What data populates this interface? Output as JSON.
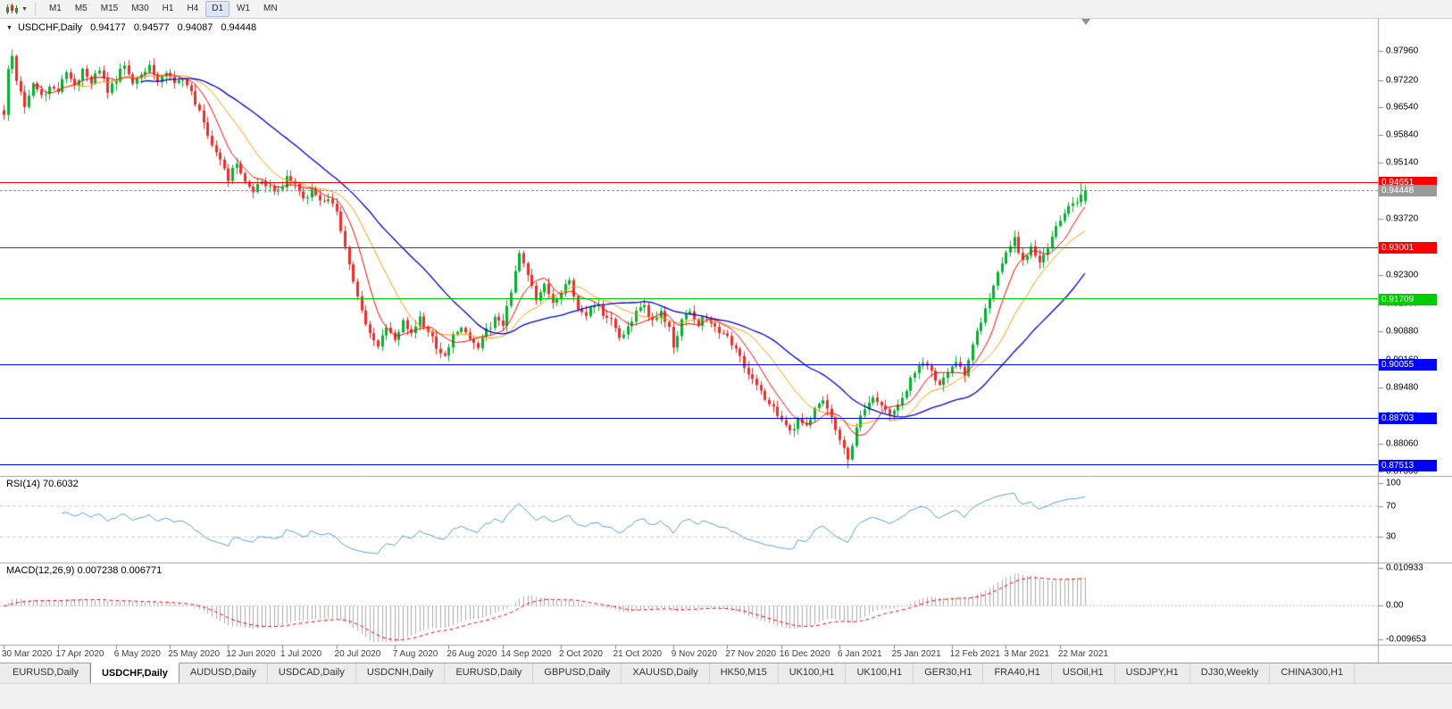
{
  "toolbar": {
    "timeframes": [
      "M1",
      "M5",
      "M15",
      "M30",
      "H1",
      "H4",
      "D1",
      "W1",
      "MN"
    ],
    "active_timeframe": "D1"
  },
  "main_chart": {
    "symbol_title": "USDCHF,Daily",
    "ohlc": {
      "open": "0.94177",
      "high": "0.94577",
      "low": "0.94087",
      "close": "0.94448"
    }
  },
  "indicator_panels": {
    "rsi": {
      "label": "RSI(14) 70.6032",
      "scale_labels": [
        "100",
        "70",
        "30"
      ]
    },
    "macd": {
      "label": "MACD(12,26,9) 0.007238 0.006771",
      "scale_labels": [
        "0.010933",
        "0.00",
        "-0.009653"
      ]
    }
  },
  "price_scale_labels": [
    "0.97960",
    "0.97220",
    "0.96540",
    "0.95840",
    "0.95140",
    "0.94440",
    "0.93720",
    "0.93020",
    "0.92300",
    "0.91600",
    "0.90880",
    "0.90160",
    "0.89480",
    "0.88760",
    "0.88060",
    "0.87360"
  ],
  "price_lines": [
    {
      "label": "0.94651",
      "price": 0.94651,
      "color": "#ff0000",
      "kind": "resistance",
      "dashed": false
    },
    {
      "label": "0.94448",
      "price": 0.94448,
      "color": "#9a9a9a",
      "kind": "current-price",
      "dashed": true
    },
    {
      "label": "0.93001",
      "price": 0.93001,
      "color": "#ff0000",
      "kind": "resistance",
      "dashed": false
    },
    {
      "label": "0.91709",
      "price": 0.91709,
      "color": "#00cc00",
      "kind": "support",
      "dashed": false
    },
    {
      "label": "0.90055",
      "price": 0.90055,
      "color": "#0000ff",
      "kind": "support",
      "dashed": false
    },
    {
      "label": "0.88703",
      "price": 0.88703,
      "color": "#0000ff",
      "kind": "support",
      "dashed": false
    },
    {
      "label": "0.87513",
      "price": 0.87513,
      "color": "#0000ff",
      "kind": "support",
      "dashed": false
    }
  ],
  "date_axis": [
    {
      "text": "30 Mar 2020",
      "bar": 0
    },
    {
      "text": "17 Apr 2020",
      "bar": 13
    },
    {
      "text": "6 May 2020",
      "bar": 27
    },
    {
      "text": "25 May 2020",
      "bar": 40
    },
    {
      "text": "12 Jun 2020",
      "bar": 54
    },
    {
      "text": "1 Jul 2020",
      "bar": 67
    },
    {
      "text": "20 Jul 2020",
      "bar": 80
    },
    {
      "text": "7 Aug 2020",
      "bar": 94
    },
    {
      "text": "26 Aug 2020",
      "bar": 107
    },
    {
      "text": "14 Sep 2020",
      "bar": 120
    },
    {
      "text": "2 Oct 2020",
      "bar": 134
    },
    {
      "text": "21 Oct 2020",
      "bar": 147
    },
    {
      "text": "9 Nov 2020",
      "bar": 161
    },
    {
      "text": "27 Nov 2020",
      "bar": 174
    },
    {
      "text": "16 Dec 2020",
      "bar": 187
    },
    {
      "text": "6 Jan 2021",
      "bar": 201
    },
    {
      "text": "25 Jan 2021",
      "bar": 214
    },
    {
      "text": "12 Feb 2021",
      "bar": 228
    },
    {
      "text": "3 Mar 2021",
      "bar": 241
    },
    {
      "text": "22 Mar 2021",
      "bar": 254
    }
  ],
  "chart_data": {
    "type": "candlestick",
    "symbol": "USDCHF",
    "timeframe": "Daily",
    "bars": 261,
    "price_range": [
      0.8724,
      0.988
    ],
    "colors": {
      "up": "#00b22d",
      "down": "#ee2b2b",
      "ma_fast": "#ff0000",
      "ma_medium": "#ff9900",
      "ma_slow": "#0000cd",
      "rsi": "#559fd6",
      "macd_histogram": "#ababab",
      "macd_signal": "#ff0000"
    },
    "moving_averages": [
      {
        "period": 8,
        "color_key": "ma_fast"
      },
      {
        "period": 17,
        "color_key": "ma_medium"
      },
      {
        "period": 34,
        "color_key": "ma_slow"
      }
    ],
    "rsi": {
      "period": 14,
      "current": 70.6032,
      "levels": [
        70,
        30
      ]
    },
    "macd": {
      "fast": 12,
      "slow": 26,
      "signal": 9,
      "current_main": 0.007238,
      "current_signal": 0.006771,
      "display_max": 0.010933,
      "display_min": -0.009653
    },
    "close_anchors": [
      [
        0,
        0.964
      ],
      [
        1,
        0.9755
      ],
      [
        2,
        0.9785
      ],
      [
        3,
        0.972
      ],
      [
        5,
        0.966
      ],
      [
        7,
        0.9715
      ],
      [
        9,
        0.9685
      ],
      [
        11,
        0.9705
      ],
      [
        13,
        0.9695
      ],
      [
        15,
        0.9745
      ],
      [
        17,
        0.9705
      ],
      [
        19,
        0.9755
      ],
      [
        21,
        0.972
      ],
      [
        23,
        0.9745
      ],
      [
        25,
        0.9695
      ],
      [
        27,
        0.9725
      ],
      [
        29,
        0.9765
      ],
      [
        31,
        0.9715
      ],
      [
        33,
        0.9735
      ],
      [
        35,
        0.9755
      ],
      [
        37,
        0.9725
      ],
      [
        39,
        0.9745
      ],
      [
        41,
        0.971
      ],
      [
        43,
        0.973
      ],
      [
        45,
        0.969
      ],
      [
        47,
        0.964
      ],
      [
        49,
        0.959
      ],
      [
        51,
        0.954
      ],
      [
        53,
        0.95
      ],
      [
        54,
        0.9475
      ],
      [
        56,
        0.9515
      ],
      [
        58,
        0.9465
      ],
      [
        60,
        0.944
      ],
      [
        62,
        0.9475
      ],
      [
        64,
        0.945
      ],
      [
        66,
        0.944
      ],
      [
        68,
        0.948
      ],
      [
        70,
        0.946
      ],
      [
        72,
        0.9425
      ],
      [
        74,
        0.9445
      ],
      [
        76,
        0.9415
      ],
      [
        78,
        0.943
      ],
      [
        80,
        0.9385
      ],
      [
        82,
        0.93
      ],
      [
        84,
        0.921
      ],
      [
        86,
        0.914
      ],
      [
        88,
        0.9085
      ],
      [
        90,
        0.9045
      ],
      [
        92,
        0.9105
      ],
      [
        94,
        0.907
      ],
      [
        96,
        0.9115
      ],
      [
        98,
        0.9085
      ],
      [
        100,
        0.9125
      ],
      [
        102,
        0.909
      ],
      [
        104,
        0.905
      ],
      [
        106,
        0.903
      ],
      [
        108,
        0.9075
      ],
      [
        110,
        0.9105
      ],
      [
        112,
        0.907
      ],
      [
        114,
        0.9045
      ],
      [
        116,
        0.909
      ],
      [
        118,
        0.912
      ],
      [
        120,
        0.91
      ],
      [
        122,
        0.9195
      ],
      [
        124,
        0.929
      ],
      [
        126,
        0.9235
      ],
      [
        128,
        0.917
      ],
      [
        130,
        0.9215
      ],
      [
        132,
        0.9155
      ],
      [
        134,
        0.919
      ],
      [
        136,
        0.921
      ],
      [
        138,
        0.9145
      ],
      [
        140,
        0.9125
      ],
      [
        142,
        0.916
      ],
      [
        144,
        0.9135
      ],
      [
        146,
        0.912
      ],
      [
        148,
        0.9075
      ],
      [
        150,
        0.91
      ],
      [
        152,
        0.914
      ],
      [
        154,
        0.915
      ],
      [
        156,
        0.9115
      ],
      [
        158,
        0.914
      ],
      [
        160,
        0.91
      ],
      [
        161,
        0.905
      ],
      [
        163,
        0.9115
      ],
      [
        165,
        0.914
      ],
      [
        167,
        0.911
      ],
      [
        169,
        0.913
      ],
      [
        171,
        0.9095
      ],
      [
        173,
        0.9085
      ],
      [
        175,
        0.906
      ],
      [
        177,
        0.902
      ],
      [
        179,
        0.898
      ],
      [
        181,
        0.895
      ],
      [
        183,
        0.892
      ],
      [
        185,
        0.8895
      ],
      [
        187,
        0.8865
      ],
      [
        189,
        0.8835
      ],
      [
        191,
        0.8865
      ],
      [
        193,
        0.8845
      ],
      [
        195,
        0.89
      ],
      [
        197,
        0.892
      ],
      [
        199,
        0.887
      ],
      [
        201,
        0.8815
      ],
      [
        203,
        0.8762
      ],
      [
        205,
        0.885
      ],
      [
        207,
        0.889
      ],
      [
        209,
        0.8915
      ],
      [
        211,
        0.8895
      ],
      [
        213,
        0.8875
      ],
      [
        215,
        0.8905
      ],
      [
        217,
        0.894
      ],
      [
        219,
        0.899
      ],
      [
        221,
        0.9005
      ],
      [
        223,
        0.8985
      ],
      [
        225,
        0.8955
      ],
      [
        227,
        0.8985
      ],
      [
        229,
        0.9015
      ],
      [
        231,
        0.8975
      ],
      [
        233,
        0.906
      ],
      [
        235,
        0.911
      ],
      [
        237,
        0.9175
      ],
      [
        239,
        0.924
      ],
      [
        241,
        0.9295
      ],
      [
        243,
        0.932
      ],
      [
        245,
        0.927
      ],
      [
        247,
        0.93
      ],
      [
        249,
        0.9268
      ],
      [
        251,
        0.9305
      ],
      [
        253,
        0.935
      ],
      [
        255,
        0.9385
      ],
      [
        257,
        0.941
      ],
      [
        259,
        0.9435
      ],
      [
        260,
        0.9445
      ]
    ]
  },
  "bottom_tabs": {
    "active_index": 1,
    "tabs": [
      "EURUSD,Daily",
      "USDCHF,Daily",
      "AUDUSD,Daily",
      "USDCAD,Daily",
      "USDCNH,Daily",
      "EURUSD,Daily",
      "GBPUSD,Daily",
      "XAUUSD,Daily",
      "HK50,M15",
      "UK100,H1",
      "UK100,H1",
      "GER30,H1",
      "FRA40,H1",
      "USOil,H1",
      "USDJPY,H1",
      "DJ30,Weekly",
      "CHINA300,H1"
    ]
  }
}
